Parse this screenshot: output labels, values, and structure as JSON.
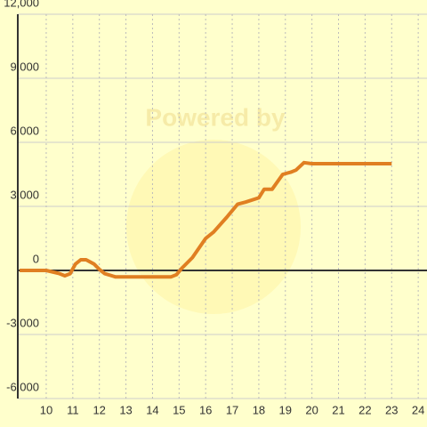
{
  "chart_data": {
    "type": "line",
    "watermark": "Powered by",
    "x": [
      9,
      10,
      10.5,
      10.7,
      10.9,
      11.1,
      11.3,
      11.5,
      11.8,
      12.0,
      12.2,
      12.6,
      13,
      14,
      14.7,
      14.9,
      15.1,
      15.5,
      16,
      16.3,
      16.8,
      17.2,
      17.5,
      18,
      18.2,
      18.5,
      18.9,
      19.2,
      19.4,
      19.7,
      20,
      21,
      22,
      23
    ],
    "series": [
      {
        "color": "#e07f22",
        "values": [
          0,
          0,
          -150,
          -250,
          -150,
          300,
          500,
          500,
          300,
          50,
          -150,
          -300,
          -300,
          -300,
          -300,
          -200,
          100,
          600,
          1500,
          1800,
          2500,
          3100,
          3200,
          3400,
          3800,
          3800,
          4500,
          4600,
          4700,
          5050,
          5000,
          5000,
          5000,
          5000
        ]
      }
    ],
    "xlim": [
      8.93,
      24.33
    ],
    "xticks": [
      10,
      11,
      12,
      13,
      14,
      15,
      16,
      17,
      18,
      19,
      20,
      21,
      22,
      23,
      24
    ],
    "ylim": [
      -6000,
      12000
    ],
    "yticks": [
      {
        "value": -6000,
        "label": "-6,000"
      },
      {
        "value": -3000,
        "label": "-3,000"
      },
      0,
      {
        "value": 3000,
        "label": "3,000"
      },
      {
        "value": 6000,
        "label": "6,000"
      },
      {
        "value": 9000,
        "label": "9,000"
      },
      {
        "value": 12000,
        "label": "12,000"
      }
    ],
    "grid": true
  }
}
